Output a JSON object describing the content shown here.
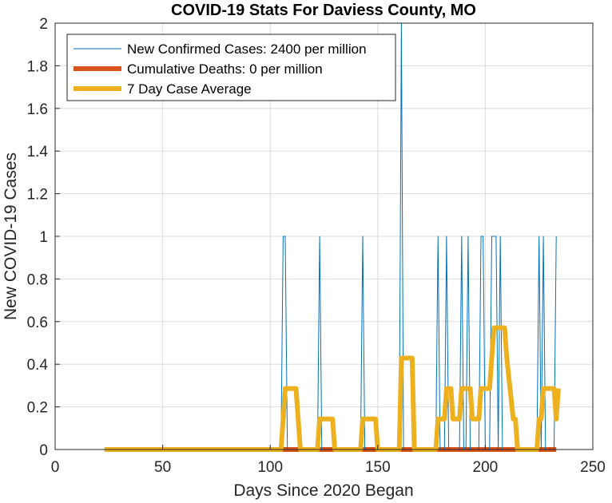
{
  "chart_data": {
    "type": "line",
    "title": "COVID-19 Stats For Daviess County, MO",
    "xlabel": "Days Since 2020 Began",
    "ylabel": "New COVID-19 Cases",
    "xlim": [
      0,
      250
    ],
    "ylim": [
      0,
      2
    ],
    "xticks": [
      0,
      50,
      100,
      150,
      200,
      250
    ],
    "yticks": [
      0,
      0.2,
      0.4,
      0.6,
      0.8,
      1,
      1.2,
      1.4,
      1.6,
      1.8,
      2
    ],
    "grid": true,
    "legend_position": "top-left",
    "series": [
      {
        "name": "New Confirmed Cases: 2400 per million",
        "color": "#0072BD",
        "points": [
          [
            23,
            0
          ],
          [
            105,
            0
          ],
          [
            106,
            1
          ],
          [
            107,
            1
          ],
          [
            108,
            0
          ],
          [
            122,
            0
          ],
          [
            123,
            1
          ],
          [
            124,
            0
          ],
          [
            142,
            0
          ],
          [
            143,
            1
          ],
          [
            144,
            0
          ],
          [
            160,
            0
          ],
          [
            161,
            2
          ],
          [
            162,
            0
          ],
          [
            177,
            0
          ],
          [
            178,
            1
          ],
          [
            179,
            0
          ],
          [
            181,
            0
          ],
          [
            182,
            1
          ],
          [
            183,
            0
          ],
          [
            188,
            0
          ],
          [
            189,
            1
          ],
          [
            190,
            0
          ],
          [
            191,
            0
          ],
          [
            192,
            1
          ],
          [
            193,
            0
          ],
          [
            197,
            0
          ],
          [
            198,
            1
          ],
          [
            199,
            1
          ],
          [
            200,
            0
          ],
          [
            202,
            0
          ],
          [
            203,
            1
          ],
          [
            204,
            1
          ],
          [
            205,
            1
          ],
          [
            206,
            0
          ],
          [
            207,
            1
          ],
          [
            208,
            0
          ],
          [
            224,
            0
          ],
          [
            225,
            1
          ],
          [
            226,
            0
          ],
          [
            227,
            1
          ],
          [
            228,
            0
          ],
          [
            232,
            0
          ],
          [
            233,
            1
          ]
        ]
      },
      {
        "name": "Cumulative Deaths: 0 per million",
        "color": "#D95319",
        "points": [
          [
            23,
            0
          ],
          [
            233,
            0
          ]
        ]
      },
      {
        "name": "7 Day Case Average",
        "color": "#EDB120",
        "points": [
          [
            23,
            0
          ],
          [
            105,
            0
          ],
          [
            106,
            0.143
          ],
          [
            107,
            0.286
          ],
          [
            112,
            0.286
          ],
          [
            113,
            0.143
          ],
          [
            114,
            0
          ],
          [
            122,
            0
          ],
          [
            123,
            0.143
          ],
          [
            129,
            0.143
          ],
          [
            130,
            0
          ],
          [
            142,
            0
          ],
          [
            143,
            0.143
          ],
          [
            149,
            0.143
          ],
          [
            150,
            0
          ],
          [
            160,
            0
          ],
          [
            161,
            0.429
          ],
          [
            166,
            0.429
          ],
          [
            167,
            0
          ],
          [
            177,
            0
          ],
          [
            178,
            0.143
          ],
          [
            181,
            0.143
          ],
          [
            182,
            0.286
          ],
          [
            184,
            0.286
          ],
          [
            185,
            0.143
          ],
          [
            188,
            0.143
          ],
          [
            189,
            0.286
          ],
          [
            193,
            0.286
          ],
          [
            194,
            0.143
          ],
          [
            197,
            0.143
          ],
          [
            198,
            0.286
          ],
          [
            202,
            0.286
          ],
          [
            203,
            0.429
          ],
          [
            204,
            0.571
          ],
          [
            209,
            0.571
          ],
          [
            210,
            0.429
          ],
          [
            213,
            0.143
          ],
          [
            214,
            0.143
          ],
          [
            215,
            0
          ],
          [
            224,
            0
          ],
          [
            225,
            0.143
          ],
          [
            226,
            0.143
          ],
          [
            227,
            0.286
          ],
          [
            232,
            0.286
          ],
          [
            233,
            0.143
          ],
          [
            234,
            0.286
          ]
        ]
      }
    ]
  }
}
